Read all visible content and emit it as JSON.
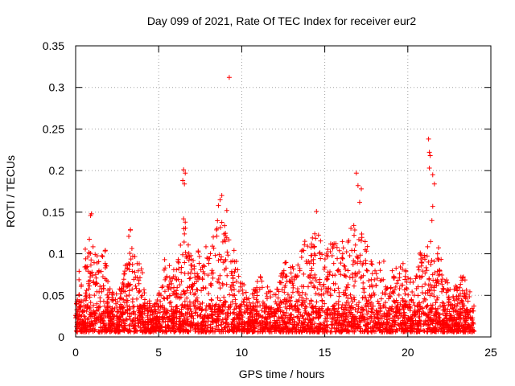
{
  "chart_data": {
    "type": "scatter",
    "title": "Day 099 of 2021, Rate Of TEC Index for receiver eur2",
    "xlabel": "GPS time / hours",
    "ylabel": "ROTI / TECUs",
    "xlim": [
      0,
      25
    ],
    "ylim": [
      0,
      0.35
    ],
    "x_ticks": [
      "0",
      "5",
      "10",
      "15",
      "20",
      "25"
    ],
    "y_ticks": [
      "0",
      "0.05",
      "0.1",
      "0.15",
      "0.2",
      "0.25",
      "0.3",
      "0.35"
    ],
    "x_tick_values": [
      0,
      5,
      10,
      15,
      20,
      25
    ],
    "y_tick_values": [
      0,
      0.05,
      0.1,
      0.15,
      0.2,
      0.25,
      0.3,
      0.35
    ],
    "grid": true,
    "marker": "+",
    "color": "#ff0000",
    "envelope": [
      {
        "x": 0.0,
        "y": 0.08
      },
      {
        "x": 0.3,
        "y": 0.09
      },
      {
        "x": 0.6,
        "y": 0.11
      },
      {
        "x": 0.9,
        "y": 0.12
      },
      {
        "x": 1.2,
        "y": 0.1
      },
      {
        "x": 1.5,
        "y": 0.1
      },
      {
        "x": 1.8,
        "y": 0.11
      },
      {
        "x": 2.1,
        "y": 0.06
      },
      {
        "x": 2.4,
        "y": 0.05
      },
      {
        "x": 2.7,
        "y": 0.07
      },
      {
        "x": 3.0,
        "y": 0.09
      },
      {
        "x": 3.3,
        "y": 0.13
      },
      {
        "x": 3.6,
        "y": 0.11
      },
      {
        "x": 3.9,
        "y": 0.09
      },
      {
        "x": 4.2,
        "y": 0.06
      },
      {
        "x": 4.5,
        "y": 0.04
      },
      {
        "x": 4.8,
        "y": 0.04
      },
      {
        "x": 5.1,
        "y": 0.06
      },
      {
        "x": 5.4,
        "y": 0.1
      },
      {
        "x": 5.7,
        "y": 0.09
      },
      {
        "x": 6.0,
        "y": 0.08
      },
      {
        "x": 6.3,
        "y": 0.11
      },
      {
        "x": 6.6,
        "y": 0.14
      },
      {
        "x": 6.9,
        "y": 0.1
      },
      {
        "x": 7.2,
        "y": 0.1
      },
      {
        "x": 7.5,
        "y": 0.12
      },
      {
        "x": 7.8,
        "y": 0.11
      },
      {
        "x": 8.1,
        "y": 0.13
      },
      {
        "x": 8.4,
        "y": 0.13
      },
      {
        "x": 8.7,
        "y": 0.16
      },
      {
        "x": 9.0,
        "y": 0.14
      },
      {
        "x": 9.3,
        "y": 0.12
      },
      {
        "x": 9.6,
        "y": 0.1
      },
      {
        "x": 9.9,
        "y": 0.08
      },
      {
        "x": 10.2,
        "y": 0.06
      },
      {
        "x": 10.5,
        "y": 0.05
      },
      {
        "x": 10.8,
        "y": 0.06
      },
      {
        "x": 11.1,
        "y": 0.08
      },
      {
        "x": 11.4,
        "y": 0.07
      },
      {
        "x": 11.7,
        "y": 0.06
      },
      {
        "x": 12.0,
        "y": 0.05
      },
      {
        "x": 12.3,
        "y": 0.07
      },
      {
        "x": 12.6,
        "y": 0.09
      },
      {
        "x": 12.9,
        "y": 0.09
      },
      {
        "x": 13.2,
        "y": 0.08
      },
      {
        "x": 13.5,
        "y": 0.1
      },
      {
        "x": 13.8,
        "y": 0.12
      },
      {
        "x": 14.1,
        "y": 0.11
      },
      {
        "x": 14.4,
        "y": 0.14
      },
      {
        "x": 14.7,
        "y": 0.12
      },
      {
        "x": 15.0,
        "y": 0.1
      },
      {
        "x": 15.3,
        "y": 0.11
      },
      {
        "x": 15.6,
        "y": 0.13
      },
      {
        "x": 15.9,
        "y": 0.12
      },
      {
        "x": 16.2,
        "y": 0.11
      },
      {
        "x": 16.5,
        "y": 0.14
      },
      {
        "x": 16.8,
        "y": 0.14
      },
      {
        "x": 17.1,
        "y": 0.13
      },
      {
        "x": 17.4,
        "y": 0.12
      },
      {
        "x": 17.7,
        "y": 0.1
      },
      {
        "x": 18.0,
        "y": 0.09
      },
      {
        "x": 18.3,
        "y": 0.09
      },
      {
        "x": 18.6,
        "y": 0.1
      },
      {
        "x": 18.9,
        "y": 0.08
      },
      {
        "x": 19.2,
        "y": 0.08
      },
      {
        "x": 19.5,
        "y": 0.09
      },
      {
        "x": 19.8,
        "y": 0.09
      },
      {
        "x": 20.1,
        "y": 0.07
      },
      {
        "x": 20.4,
        "y": 0.08
      },
      {
        "x": 20.7,
        "y": 0.1
      },
      {
        "x": 21.0,
        "y": 0.11
      },
      {
        "x": 21.3,
        "y": 0.12
      },
      {
        "x": 21.6,
        "y": 0.1
      },
      {
        "x": 21.9,
        "y": 0.11
      },
      {
        "x": 22.2,
        "y": 0.08
      },
      {
        "x": 22.5,
        "y": 0.07
      },
      {
        "x": 22.8,
        "y": 0.06
      },
      {
        "x": 23.1,
        "y": 0.07
      },
      {
        "x": 23.4,
        "y": 0.08
      },
      {
        "x": 23.7,
        "y": 0.06
      },
      {
        "x": 24.0,
        "y": 0.04
      }
    ],
    "outliers": [
      {
        "x": 0.95,
        "y": 0.148
      },
      {
        "x": 0.9,
        "y": 0.146
      },
      {
        "x": 6.5,
        "y": 0.201
      },
      {
        "x": 6.6,
        "y": 0.197
      },
      {
        "x": 6.45,
        "y": 0.188
      },
      {
        "x": 6.55,
        "y": 0.184
      },
      {
        "x": 6.5,
        "y": 0.142
      },
      {
        "x": 6.6,
        "y": 0.138
      },
      {
        "x": 9.25,
        "y": 0.312
      },
      {
        "x": 8.7,
        "y": 0.165
      },
      {
        "x": 8.8,
        "y": 0.17
      },
      {
        "x": 8.6,
        "y": 0.158
      },
      {
        "x": 9.1,
        "y": 0.152
      },
      {
        "x": 16.9,
        "y": 0.197
      },
      {
        "x": 17.0,
        "y": 0.182
      },
      {
        "x": 17.2,
        "y": 0.178
      },
      {
        "x": 17.1,
        "y": 0.162
      },
      {
        "x": 21.25,
        "y": 0.238
      },
      {
        "x": 21.3,
        "y": 0.222
      },
      {
        "x": 21.35,
        "y": 0.218
      },
      {
        "x": 21.3,
        "y": 0.203
      },
      {
        "x": 21.5,
        "y": 0.195
      },
      {
        "x": 21.6,
        "y": 0.184
      },
      {
        "x": 21.5,
        "y": 0.157
      },
      {
        "x": 21.45,
        "y": 0.14
      },
      {
        "x": 14.5,
        "y": 0.151
      },
      {
        "x": 3.3,
        "y": 0.129
      },
      {
        "x": 3.2,
        "y": 0.121
      }
    ]
  }
}
